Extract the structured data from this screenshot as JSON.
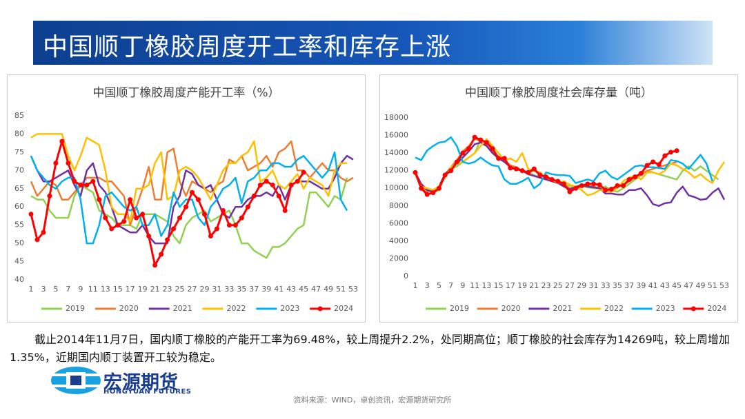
{
  "header": {
    "title": "中国顺丁橡胶周度开工率和库存上涨"
  },
  "chart_data": [
    {
      "type": "line",
      "title": "中国顺丁橡胶周度产能开工率（%）",
      "categories": [
        1,
        null,
        3,
        null,
        5,
        null,
        7,
        null,
        9,
        null,
        11,
        null,
        13,
        null,
        15,
        null,
        17,
        null,
        19,
        null,
        21,
        null,
        23,
        null,
        25,
        null,
        27,
        null,
        29,
        null,
        31,
        null,
        33,
        null,
        35,
        null,
        37,
        null,
        39,
        null,
        41,
        null,
        43,
        null,
        45,
        null,
        47,
        null,
        49,
        null,
        51,
        null,
        53
      ],
      "ylim": [
        40,
        85
      ],
      "yticks": [
        40,
        45,
        50,
        55,
        60,
        65,
        70,
        75,
        80,
        85
      ],
      "grid": false,
      "legend": "bottom",
      "series": [
        {
          "name": "2019",
          "color": "#92d050",
          "values": [
            63,
            62,
            62,
            59,
            57,
            57,
            57,
            63,
            66,
            65,
            64,
            59,
            58,
            57,
            55,
            55,
            55,
            54,
            58,
            58,
            58,
            57,
            56,
            52,
            50,
            55,
            57,
            58,
            59,
            56,
            57,
            58,
            59,
            55,
            50,
            50,
            48,
            47,
            46,
            49,
            49,
            50,
            52,
            54,
            55,
            64,
            64,
            62,
            60,
            63,
            62,
            68,
            null
          ]
        },
        {
          "name": "2020",
          "color": "#ed7d31",
          "values": [
            67,
            63,
            65,
            67,
            66,
            62,
            62,
            64,
            66,
            68,
            68,
            68,
            67,
            67,
            65,
            63,
            55,
            60,
            65,
            71,
            62,
            62,
            75,
            76,
            67,
            63,
            67,
            66,
            65,
            64,
            66,
            67,
            73,
            72,
            74,
            70,
            71,
            72,
            74,
            71,
            75,
            76,
            78,
            70,
            70,
            68,
            70,
            72,
            70,
            70,
            68,
            67,
            68
          ]
        },
        {
          "name": "2021",
          "color": "#7030a0",
          "values": [
            74,
            70,
            67,
            67,
            68,
            69,
            70,
            66,
            63,
            70,
            72,
            66,
            64,
            60,
            55,
            54,
            53,
            53,
            55,
            52,
            50,
            50,
            50,
            60,
            63,
            70,
            69,
            66,
            65,
            66,
            62,
            58,
            57,
            60,
            60,
            62,
            63,
            63,
            64,
            63,
            66,
            62,
            66,
            67,
            67,
            67,
            66,
            65,
            65,
            68,
            72,
            74,
            73
          ]
        },
        {
          "name": "2022",
          "color": "#ffc000",
          "values": [
            79,
            80,
            80,
            80,
            80,
            80,
            74,
            70,
            74,
            79,
            78,
            77,
            70,
            60,
            58,
            58,
            56,
            65,
            65,
            66,
            72,
            75,
            62,
            63,
            70,
            71,
            70,
            68,
            65,
            62,
            66,
            70,
            72,
            72,
            74,
            75,
            78,
            67,
            68,
            70,
            66,
            65,
            67,
            69,
            65,
            68,
            67,
            66,
            63,
            70,
            72,
            72,
            null
          ]
        },
        {
          "name": "2023",
          "color": "#00b0f0",
          "values": [
            74,
            70,
            68,
            66,
            65,
            67,
            68,
            68,
            62,
            50,
            50,
            55,
            63,
            64,
            62,
            60,
            59,
            60,
            55,
            55,
            58,
            52,
            55,
            64,
            60,
            62,
            62,
            57,
            55,
            60,
            62,
            65,
            66,
            68,
            61,
            67,
            68,
            70,
            70,
            72,
            72,
            71,
            71,
            73,
            74,
            72,
            70,
            68,
            70,
            75,
            62,
            59,
            null
          ]
        },
        {
          "name": "2024",
          "color": "#ff0000",
          "markers": true,
          "values": [
            58,
            51,
            53,
            63,
            72,
            78,
            72,
            67,
            66,
            66,
            67,
            62,
            57,
            54,
            55,
            56,
            62,
            57,
            58,
            52,
            44,
            47,
            51,
            54,
            57,
            60,
            64,
            62,
            58,
            52,
            54,
            59,
            55,
            55,
            57,
            60,
            63,
            66,
            67,
            66,
            63,
            59,
            66,
            67,
            69.48,
            null,
            null,
            null,
            null,
            null,
            null,
            null,
            null
          ]
        }
      ]
    },
    {
      "type": "line",
      "title": "中国顺丁橡胶周度社会库存量（吨）",
      "categories": [
        1,
        null,
        3,
        null,
        5,
        null,
        7,
        null,
        9,
        null,
        11,
        null,
        13,
        null,
        15,
        null,
        17,
        null,
        19,
        null,
        21,
        null,
        23,
        null,
        25,
        null,
        27,
        null,
        29,
        null,
        31,
        null,
        33,
        null,
        35,
        null,
        37,
        null,
        39,
        null,
        41,
        null,
        43,
        null,
        45,
        null,
        47,
        null,
        49,
        null,
        51,
        null,
        53
      ],
      "ylim": [
        0,
        18000
      ],
      "yticks": [
        0,
        2000,
        4000,
        6000,
        8000,
        10000,
        12000,
        14000,
        16000,
        18000
      ],
      "grid": false,
      "legend": "bottom",
      "series": [
        {
          "name": "2019",
          "color": "#92d050",
          "values": [
            12000,
            10000,
            9800,
            9500,
            9800,
            11500,
            12200,
            12500,
            13000,
            13500,
            14000,
            15500,
            15000,
            14000,
            13500,
            13000,
            12500,
            12200,
            12000,
            11800,
            11500,
            11200,
            11000,
            10800,
            10600,
            10400,
            10300,
            10200,
            10200,
            10100,
            10000,
            10000,
            10200,
            9800,
            9600,
            10000,
            10500,
            11000,
            11500,
            12000,
            11800,
            11600,
            11400,
            11200,
            11000,
            12000,
            12500,
            12000,
            12500,
            12000,
            11500,
            11000,
            null
          ]
        },
        {
          "name": "2020",
          "color": "#ed7d31",
          "values": [
            11800,
            10200,
            9600,
            9800,
            10200,
            11600,
            12400,
            13200,
            14200,
            14800,
            15600,
            15400,
            15000,
            14200,
            13600,
            13200,
            12600,
            12400,
            12000,
            11800,
            12000,
            11600,
            11400,
            11000,
            10600,
            10400,
            10000,
            10200,
            10400,
            10300,
            10200,
            10000,
            9600,
            9800,
            10200,
            10400,
            10800,
            11200,
            11600,
            12000,
            12200,
            12400,
            12600,
            12800,
            13000,
            null,
            null,
            null,
            null,
            null,
            null,
            null,
            null
          ]
        },
        {
          "name": "2021",
          "color": "#7030a0",
          "values": [
            11800,
            10500,
            9800,
            9600,
            10200,
            11600,
            12200,
            12800,
            13500,
            14200,
            15000,
            15200,
            14800,
            14000,
            13400,
            13000,
            12400,
            12200,
            12000,
            11600,
            11400,
            11200,
            11000,
            10800,
            10600,
            10200,
            9900,
            10100,
            10400,
            10200,
            10100,
            10000,
            9400,
            9400,
            9300,
            9300,
            9800,
            9800,
            10000,
            9200,
            8200,
            8000,
            8300,
            8400,
            9500,
            10200,
            9200,
            9000,
            8700,
            8800,
            9500,
            10000,
            8700
          ]
        },
        {
          "name": "2022",
          "color": "#ffc000",
          "values": [
            11600,
            10200,
            10000,
            9800,
            10200,
            11200,
            12400,
            12800,
            13000,
            13500,
            14000,
            14800,
            15600,
            14800,
            14000,
            13200,
            13400,
            13000,
            14000,
            12200,
            12000,
            11800,
            11200,
            11000,
            10600,
            10800,
            10400,
            10200,
            9800,
            9200,
            9400,
            9800,
            9700,
            9600,
            10000,
            10800,
            11200,
            11500,
            11000,
            11800,
            11800,
            11600,
            12000,
            12800,
            12600,
            12200,
            11800,
            11200,
            11600,
            11000,
            10600,
            12000,
            13000
          ]
        },
        {
          "name": "2023",
          "color": "#00b0f0",
          "values": [
            13500,
            13200,
            14300,
            14800,
            15200,
            15300,
            15800,
            14800,
            13000,
            12800,
            13000,
            13500,
            13000,
            12600,
            12500,
            11000,
            10500,
            10500,
            10800,
            11200,
            10000,
            10500,
            11800,
            11600,
            11500,
            11500,
            11400,
            10600,
            10800,
            11000,
            10800,
            11700,
            12000,
            11300,
            11000,
            11500,
            12000,
            12500,
            12600,
            12400,
            12400,
            12300,
            12200,
            13200,
            13100,
            12800,
            12200,
            13000,
            13800,
            12800,
            10800,
            null,
            null
          ]
        },
        {
          "name": "2024",
          "color": "#ff0000",
          "markers": true,
          "values": [
            11800,
            10000,
            9300,
            9500,
            10000,
            11500,
            12000,
            13000,
            14000,
            14500,
            15800,
            15500,
            15200,
            14500,
            13400,
            13400,
            12300,
            12200,
            12000,
            11800,
            12200,
            11500,
            11300,
            11000,
            10800,
            10500,
            9600,
            10000,
            10300,
            10500,
            10500,
            10400,
            9800,
            9900,
            10300,
            10300,
            11000,
            11300,
            11700,
            12600,
            13000,
            12700,
            13700,
            14100,
            14269,
            null,
            null,
            null,
            null,
            null,
            null,
            null,
            null
          ]
        }
      ]
    }
  ],
  "body": {
    "text": "截止2014年11月7日，国内顺丁橡胶的产能开工率为69.48%，较上周提升2.2%，处同期高位；顺丁橡胶的社会库存为14269吨，较上周增加1.35%，近期国内顺丁装置开工较为稳定。"
  },
  "logo": {
    "name": "宏源期货",
    "subtitle": "HONGYUAN FUTURES"
  },
  "source": "资料来源：WIND，卓创资讯，宏源期货研究所"
}
